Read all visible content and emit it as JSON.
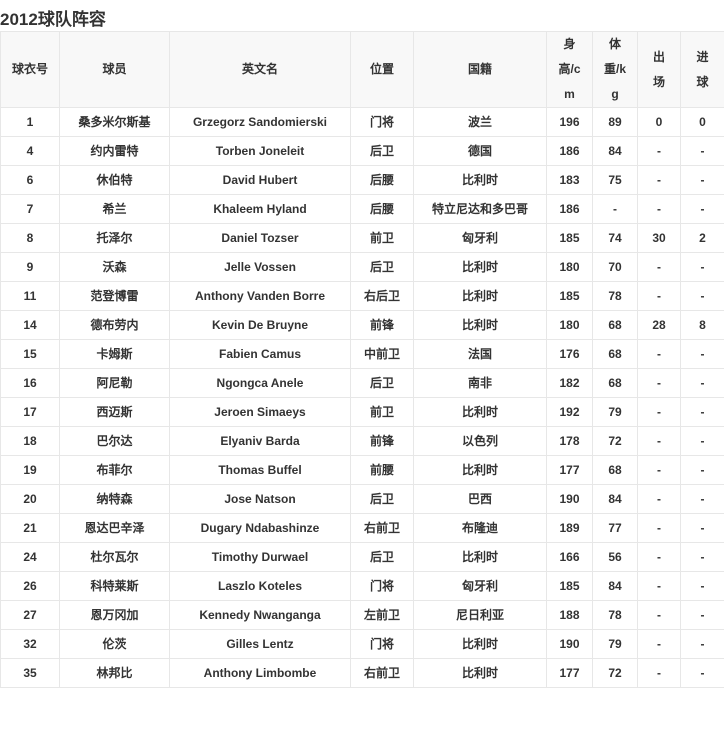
{
  "title": "2012球队阵容",
  "colors": {
    "header_background": "#f8f8f8",
    "border": "#e7e7e7",
    "text": "#333333",
    "row_background": "#ffffff"
  },
  "table": {
    "headers": [
      "球衣号",
      "球员",
      "英文名",
      "位置",
      "国籍",
      "身高/cm",
      "体重/kg",
      "出场",
      "进球"
    ],
    "column_keys": [
      "jersey-number",
      "player-name",
      "english-name",
      "position",
      "nationality",
      "height-cm",
      "weight-kg",
      "appearances",
      "goals"
    ],
    "rows": [
      [
        "1",
        "桑多米尔斯基",
        "Grzegorz Sandomierski",
        "门将",
        "波兰",
        "196",
        "89",
        "0",
        "0"
      ],
      [
        "4",
        "约内雷特",
        "Torben Joneleit",
        "后卫",
        "德国",
        "186",
        "84",
        "-",
        "-"
      ],
      [
        "6",
        "休伯特",
        "David Hubert",
        "后腰",
        "比利时",
        "183",
        "75",
        "-",
        "-"
      ],
      [
        "7",
        "希兰",
        "Khaleem Hyland",
        "后腰",
        "特立尼达和多巴哥",
        "186",
        "-",
        "-",
        "-"
      ],
      [
        "8",
        "托泽尔",
        "Daniel Tozser",
        "前卫",
        "匈牙利",
        "185",
        "74",
        "30",
        "2"
      ],
      [
        "9",
        "沃森",
        "Jelle Vossen",
        "后卫",
        "比利时",
        "180",
        "70",
        "-",
        "-"
      ],
      [
        "11",
        "范登博雷",
        "Anthony Vanden Borre",
        "右后卫",
        "比利时",
        "185",
        "78",
        "-",
        "-"
      ],
      [
        "14",
        "德布劳内",
        "Kevin De Bruyne",
        "前锋",
        "比利时",
        "180",
        "68",
        "28",
        "8"
      ],
      [
        "15",
        "卡姆斯",
        "Fabien Camus",
        "中前卫",
        "法国",
        "176",
        "68",
        "-",
        "-"
      ],
      [
        "16",
        "阿尼勒",
        "Ngongca Anele",
        "后卫",
        "南非",
        "182",
        "68",
        "-",
        "-"
      ],
      [
        "17",
        "西迈斯",
        "Jeroen Simaeys",
        "前卫",
        "比利时",
        "192",
        "79",
        "-",
        "-"
      ],
      [
        "18",
        "巴尔达",
        "Elyaniv Barda",
        "前锋",
        "以色列",
        "178",
        "72",
        "-",
        "-"
      ],
      [
        "19",
        "布菲尔",
        "Thomas Buffel",
        "前腰",
        "比利时",
        "177",
        "68",
        "-",
        "-"
      ],
      [
        "20",
        "纳特森",
        "Jose Natson",
        "后卫",
        "巴西",
        "190",
        "84",
        "-",
        "-"
      ],
      [
        "21",
        "恩达巴辛泽",
        "Dugary Ndabashinze",
        "右前卫",
        "布隆迪",
        "189",
        "77",
        "-",
        "-"
      ],
      [
        "24",
        "杜尔瓦尔",
        "Timothy Durwael",
        "后卫",
        "比利时",
        "166",
        "56",
        "-",
        "-"
      ],
      [
        "26",
        "科特莱斯",
        "Laszlo Koteles",
        "门将",
        "匈牙利",
        "185",
        "84",
        "-",
        "-"
      ],
      [
        "27",
        "恩万冈加",
        "Kennedy Nwanganga",
        "左前卫",
        "尼日利亚",
        "188",
        "78",
        "-",
        "-"
      ],
      [
        "32",
        "伦茨",
        "Gilles Lentz",
        "门将",
        "比利时",
        "190",
        "79",
        "-",
        "-"
      ],
      [
        "35",
        "林邦比",
        "Anthony Limbombe",
        "右前卫",
        "比利时",
        "177",
        "72",
        "-",
        "-"
      ]
    ]
  }
}
